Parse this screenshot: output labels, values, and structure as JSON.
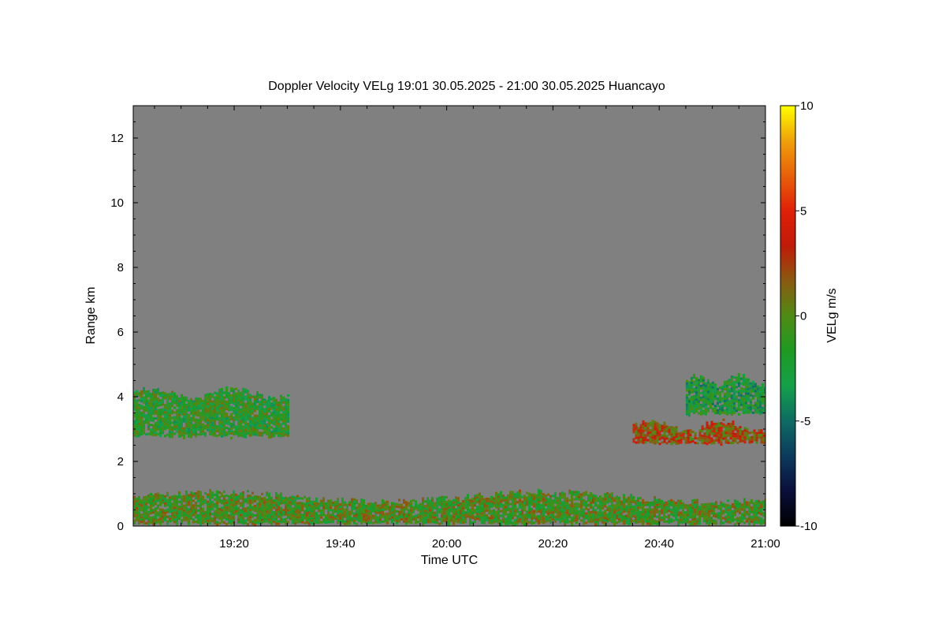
{
  "chart_data": {
    "type": "heatmap",
    "title": "Doppler Velocity VELg   19:01 30.05.2025 - 21:00 30.05.2025 Huancayo",
    "xlabel": "Time UTC",
    "ylabel": "Range km",
    "colorbar_label": "VELg m/s",
    "x_range_minutes": [
      1,
      120
    ],
    "x_ticks": [
      {
        "minute": 20,
        "label": "19:20"
      },
      {
        "minute": 40,
        "label": "19:40"
      },
      {
        "minute": 60,
        "label": "20:00"
      },
      {
        "minute": 80,
        "label": "20:20"
      },
      {
        "minute": 100,
        "label": "20:40"
      },
      {
        "minute": 120,
        "label": "21:00"
      }
    ],
    "ylim": [
      0,
      13
    ],
    "y_ticks": [
      0,
      2,
      4,
      6,
      8,
      10,
      12
    ],
    "y_tick_labels": [
      "0",
      "2",
      "4",
      "6",
      "8",
      "10",
      "12"
    ],
    "color_range": [
      -10,
      10
    ],
    "colorbar_ticks": [
      10,
      5,
      0,
      -5,
      -10
    ],
    "colorbar_tick_labels": [
      "10",
      "5",
      "0",
      "-5",
      "-10"
    ],
    "background_color": "#808080",
    "colormap": [
      "#000000",
      "#0a0f3a",
      "#0c3a5c",
      "#0e6b63",
      "#14a04a",
      "#1e9a22",
      "#4f8a14",
      "#8a5a10",
      "#c01a08",
      "#e02008",
      "#e8600a",
      "#f0a00a",
      "#ffff00"
    ],
    "echo_regions": [
      {
        "name": "boundary-layer",
        "t_start": 1,
        "t_end": 120,
        "z_min": 0.1,
        "z_max": 0.9,
        "velocity_mean": -0.5,
        "note": "mixed green/red near surface"
      },
      {
        "name": "layer-early",
        "t_start": 1,
        "t_end": 30,
        "z_min": 2.8,
        "z_max": 4.1,
        "velocity_mean": -1.5
      },
      {
        "name": "layer-late-upper",
        "t_start": 105,
        "t_end": 120,
        "z_min": 3.5,
        "z_max": 4.5,
        "velocity_mean": -2.5
      },
      {
        "name": "layer-late-lower",
        "t_start": 95,
        "t_end": 120,
        "z_min": 2.6,
        "z_max": 3.1,
        "velocity_mean": 2
      }
    ]
  }
}
